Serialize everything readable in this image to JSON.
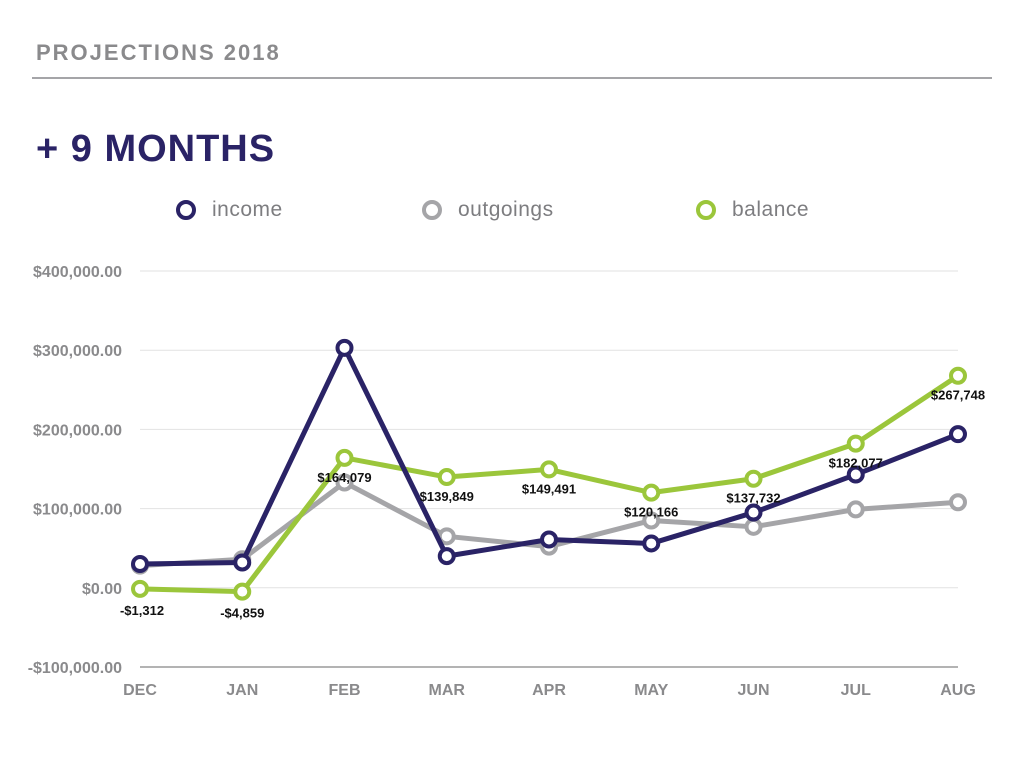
{
  "header": {
    "title": "PROJECTIONS 2018",
    "headline": "+ 9 MONTHS"
  },
  "colors": {
    "income": "#2a2366",
    "outgoings": "#a5a5a8",
    "balance": "#9bc63b",
    "grid": "#e2e2e2",
    "axis": "#9a9a9a"
  },
  "chart_data": {
    "type": "line",
    "title": "+ 9 MONTHS",
    "categories": [
      "DEC",
      "JAN",
      "FEB",
      "MAR",
      "APR",
      "MAY",
      "JUN",
      "JUL",
      "AUG"
    ],
    "ylim": [
      -100000,
      400000
    ],
    "yticks": [
      400000,
      300000,
      200000,
      100000,
      0,
      -100000
    ],
    "ytick_labels": [
      "$400,000.00",
      "$300,000.00",
      "$200,000.00",
      "$100,000.00",
      "$0.00",
      "-$100,000.00"
    ],
    "legend_position": "top",
    "grid": true,
    "series": [
      {
        "key": "outgoings",
        "name": "outgoings",
        "values": [
          28000,
          36000,
          133000,
          65000,
          52000,
          85000,
          77000,
          99000,
          108000
        ]
      },
      {
        "key": "balance",
        "name": "balance",
        "values": [
          -1312,
          -4859,
          164079,
          139849,
          149491,
          120166,
          137732,
          182077,
          267748
        ],
        "data_labels": [
          "-$1,312",
          "-$4,859",
          "$164,079",
          "$139,849",
          "$149,491",
          "$120,166",
          "$137,732",
          "$182,077",
          "$267,748"
        ]
      },
      {
        "key": "income",
        "name": "income",
        "values": [
          30000,
          32000,
          303000,
          40000,
          61000,
          56000,
          95000,
          143000,
          194000
        ]
      }
    ]
  }
}
